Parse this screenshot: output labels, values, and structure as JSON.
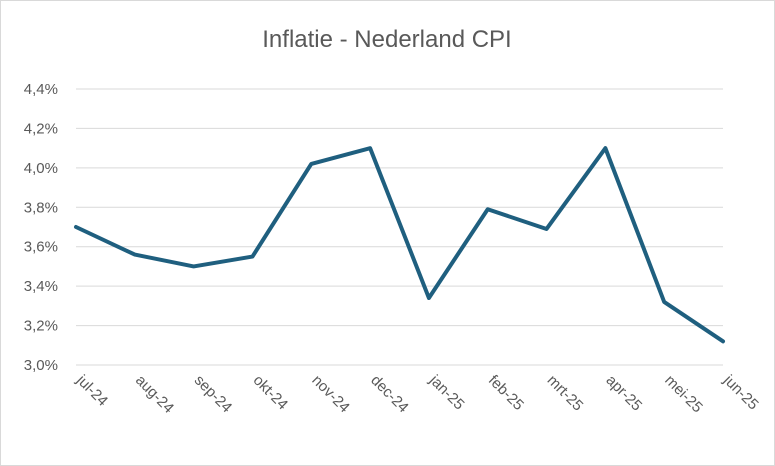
{
  "chart_data": {
    "type": "line",
    "title": "Inflatie - Nederland CPI",
    "xlabel": "",
    "ylabel": "",
    "categories": [
      "jul-24",
      "aug-24",
      "sep-24",
      "okt-24",
      "nov-24",
      "dec-24",
      "jan-25",
      "feb-25",
      "mrt-25",
      "apr-25",
      "mei-25",
      "jun-25"
    ],
    "series": [
      {
        "values": [
          3.7,
          3.56,
          3.5,
          3.55,
          4.02,
          4.1,
          3.34,
          3.79,
          3.69,
          4.1,
          3.32,
          3.12
        ]
      }
    ],
    "ylim": [
      3.0,
      4.4
    ],
    "yticks": [
      {
        "value": 3.0,
        "label": "3,0%"
      },
      {
        "value": 3.2,
        "label": "3,2%"
      },
      {
        "value": 3.4,
        "label": "3,4%"
      },
      {
        "value": 3.6,
        "label": "3,6%"
      },
      {
        "value": 3.8,
        "label": "3,8%"
      },
      {
        "value": 4.0,
        "label": "4,0%"
      },
      {
        "value": 4.2,
        "label": "4,2%"
      },
      {
        "value": 4.4,
        "label": "4,4%"
      }
    ],
    "grid": true,
    "legend": "none",
    "line_color": "#1f5f7f"
  }
}
